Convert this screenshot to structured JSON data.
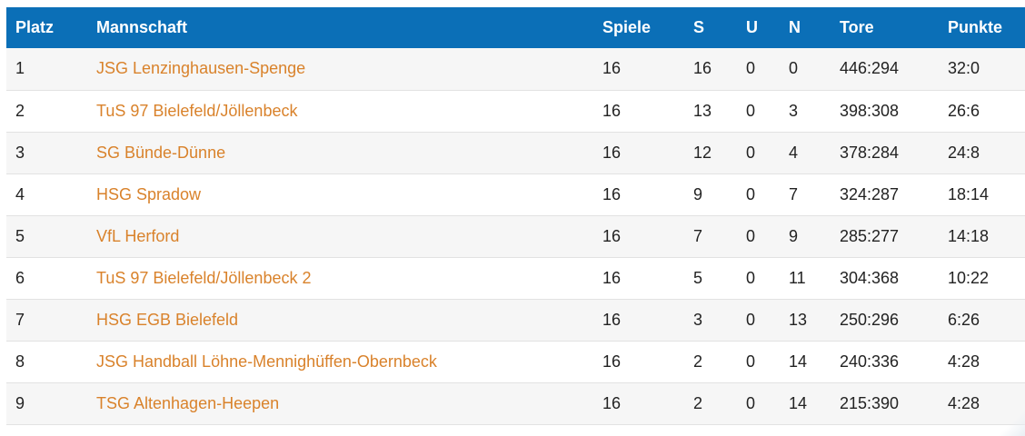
{
  "table": {
    "headers": {
      "platz": "Platz",
      "team": "Mannschaft",
      "spiele": "Spiele",
      "s": "S",
      "u": "U",
      "n": "N",
      "tore": "Tore",
      "punkte": "Punkte"
    },
    "rows": [
      {
        "platz": "1",
        "team": "JSG Lenzinghausen-Spenge",
        "spiele": "16",
        "s": "16",
        "u": "0",
        "n": "0",
        "tore": "446:294",
        "punkte": "32:0"
      },
      {
        "platz": "2",
        "team": "TuS 97 Bielefeld/Jöllenbeck",
        "spiele": "16",
        "s": "13",
        "u": "0",
        "n": "3",
        "tore": "398:308",
        "punkte": "26:6"
      },
      {
        "platz": "3",
        "team": "SG Bünde-Dünne",
        "spiele": "16",
        "s": "12",
        "u": "0",
        "n": "4",
        "tore": "378:284",
        "punkte": "24:8"
      },
      {
        "platz": "4",
        "team": "HSG Spradow",
        "spiele": "16",
        "s": "9",
        "u": "0",
        "n": "7",
        "tore": "324:287",
        "punkte": "18:14"
      },
      {
        "platz": "5",
        "team": "VfL Herford",
        "spiele": "16",
        "s": "7",
        "u": "0",
        "n": "9",
        "tore": "285:277",
        "punkte": "14:18"
      },
      {
        "platz": "6",
        "team": "TuS 97 Bielefeld/Jöllenbeck 2",
        "spiele": "16",
        "s": "5",
        "u": "0",
        "n": "11",
        "tore": "304:368",
        "punkte": "10:22"
      },
      {
        "platz": "7",
        "team": "HSG EGB Bielefeld",
        "spiele": "16",
        "s": "3",
        "u": "0",
        "n": "13",
        "tore": "250:296",
        "punkte": "6:26"
      },
      {
        "platz": "8",
        "team": "JSG Handball Löhne-Mennighüffen-Obernbeck",
        "spiele": "16",
        "s": "2",
        "u": "0",
        "n": "14",
        "tore": "240:336",
        "punkte": "4:28"
      },
      {
        "platz": "9",
        "team": "TSG Altenhagen-Heepen",
        "spiele": "16",
        "s": "2",
        "u": "0",
        "n": "14",
        "tore": "215:390",
        "punkte": "4:28"
      }
    ]
  },
  "colors": {
    "header_bg": "#0b6fb7",
    "header_text": "#ffffff",
    "team_link": "#d9822b",
    "row_odd": "#f6f6f6",
    "row_even": "#ffffff"
  }
}
